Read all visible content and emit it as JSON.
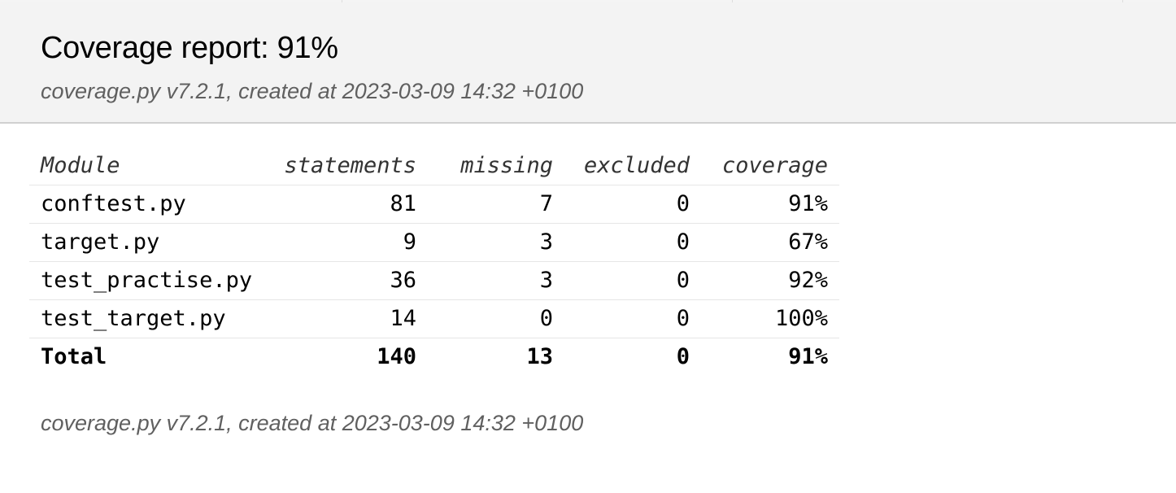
{
  "header": {
    "title": "Coverage report: 91%",
    "meta": "coverage.py v7.2.1, created at 2023-03-09 14:32 +0100"
  },
  "table": {
    "columns": {
      "module": "Module",
      "statements": "statements",
      "missing": "missing",
      "excluded": "excluded",
      "coverage": "coverage"
    },
    "rows": [
      {
        "module": "conftest.py",
        "statements": "81",
        "missing": "7",
        "excluded": "0",
        "coverage": "91%"
      },
      {
        "module": "target.py",
        "statements": "9",
        "missing": "3",
        "excluded": "0",
        "coverage": "67%"
      },
      {
        "module": "test_practise.py",
        "statements": "36",
        "missing": "3",
        "excluded": "0",
        "coverage": "92%"
      },
      {
        "module": "test_target.py",
        "statements": "14",
        "missing": "0",
        "excluded": "0",
        "coverage": "100%"
      }
    ],
    "total": {
      "module": "Total",
      "statements": "140",
      "missing": "13",
      "excluded": "0",
      "coverage": "91%"
    }
  },
  "footer": {
    "meta": "coverage.py v7.2.1, created at 2023-03-09 14:32 +0100"
  }
}
